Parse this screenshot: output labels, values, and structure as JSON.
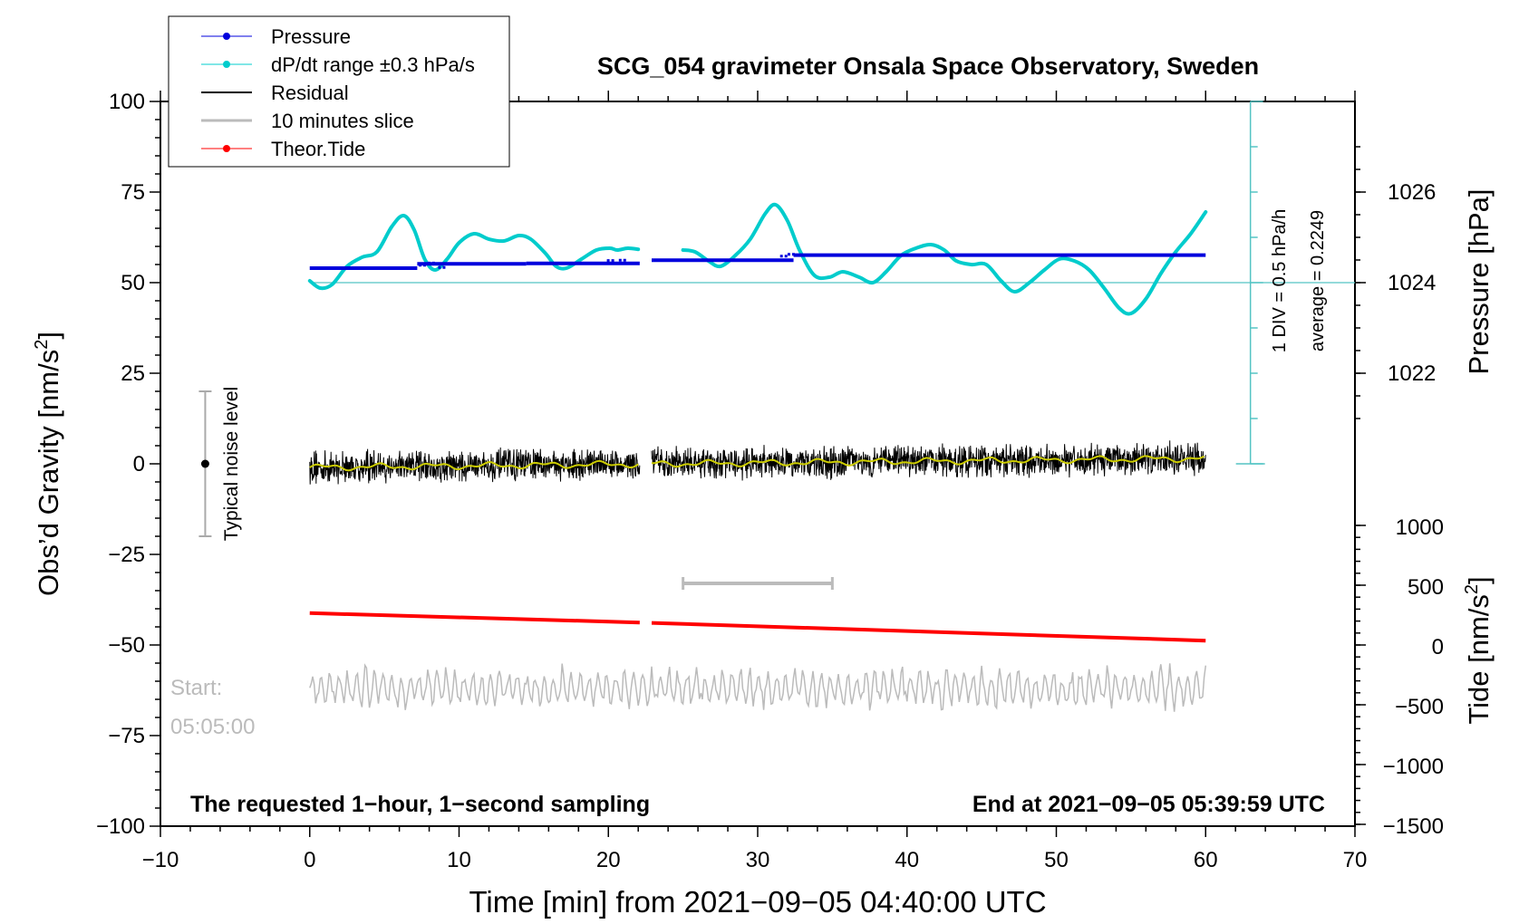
{
  "chart_data": {
    "type": "line",
    "title": "SCG_054 gravimeter Onsala Space Observatory, Sweden",
    "xlabel": "Time [min] from 2021−09−05 04:40:00 UTC",
    "ylabel_left": "Obs’d Gravity [nm/s",
    "ylabel_left_sup": "2",
    "ylabel_left_end": "]",
    "ylabel_pressure": "Pressure [hPa]",
    "ylabel_tide": "Tide [nm/s",
    "ylabel_tide_sup": "2",
    "ylabel_tide_end": "]",
    "xlim": [
      -10,
      70
    ],
    "ylim": [
      -100,
      100
    ],
    "xticks": [
      -10,
      0,
      10,
      20,
      30,
      40,
      50,
      60,
      70
    ],
    "xtick_labels": [
      "−10",
      "0",
      "10",
      "20",
      "30",
      "40",
      "50",
      "60",
      "70"
    ],
    "yticks": [
      -100,
      -75,
      -50,
      -25,
      0,
      25,
      50,
      75,
      100
    ],
    "ytick_labels": [
      "−100",
      "−75",
      "−50",
      "−25",
      "0",
      "25",
      "50",
      "75",
      "100"
    ],
    "pressure_ticks": [
      1022,
      1024,
      1026
    ],
    "pressure_tick_labels": [
      "1022",
      "1024",
      "1026"
    ],
    "tide_ticks": [
      -1500,
      -1000,
      -500,
      0,
      500,
      1000
    ],
    "tide_tick_labels": [
      "−1500",
      "−1000",
      "−500",
      "0",
      "500",
      "1000"
    ],
    "legend": [
      {
        "label": "Pressure",
        "color": "#0000dd",
        "marker": true
      },
      {
        "label": "dP/dt range ±0.3 hPa/s",
        "color": "#00cccc",
        "marker": true
      },
      {
        "label": "Residual",
        "color": "#000000",
        "marker": false
      },
      {
        "label": "10 minutes slice",
        "color": "#bbbbbb",
        "marker": false
      },
      {
        "label": "Theor.Tide",
        "color": "#ff0000",
        "marker": true
      }
    ],
    "pressure_scale_label": "1 DIV = 0.5 hPa/h",
    "average_label": "average = 0.2249",
    "noise_label": "Typical noise level",
    "noise_bar": {
      "x": -7,
      "center": 0,
      "low": -20,
      "high": 20
    },
    "slice_bar": {
      "x_start": 25,
      "x_end": 35,
      "y": -33
    },
    "gap": [
      22.1,
      22.9
    ],
    "pressure_segments": [
      {
        "x0": 0,
        "x1": 7.2,
        "y": 54
      },
      {
        "x0": 7.2,
        "x1": 14.5,
        "y": 55.2
      },
      {
        "x0": 14.5,
        "x1": 22.1,
        "y": 55.3
      },
      {
        "x0": 22.9,
        "x1": 32.4,
        "y": 56.2
      },
      {
        "x0": 32.4,
        "x1": 60,
        "y": 57.6
      }
    ],
    "dpdt_gridline_y": 50,
    "dpdt_points": [
      [
        0,
        50.5
      ],
      [
        0.7,
        48.5
      ],
      [
        1.5,
        49.5
      ],
      [
        2.5,
        54.5
      ],
      [
        3.5,
        57
      ],
      [
        4.5,
        58.5
      ],
      [
        5.5,
        65.5
      ],
      [
        6.3,
        68.5
      ],
      [
        7,
        64.5
      ],
      [
        7.7,
        56.5
      ],
      [
        8.4,
        53.5
      ],
      [
        9.2,
        56.5
      ],
      [
        10,
        61
      ],
      [
        11,
        63.5
      ],
      [
        12,
        62
      ],
      [
        13,
        61.5
      ],
      [
        14,
        63
      ],
      [
        14.8,
        62
      ],
      [
        15.8,
        58
      ],
      [
        16.5,
        54.5
      ],
      [
        17.2,
        54
      ],
      [
        18.2,
        56.5
      ],
      [
        19.2,
        59
      ],
      [
        20.1,
        59.5
      ],
      [
        20.6,
        59
      ],
      [
        21.3,
        59.5
      ],
      [
        22,
        59.2
      ],
      null,
      [
        25,
        59
      ],
      [
        25.8,
        58.5
      ],
      [
        26.7,
        56
      ],
      [
        27.5,
        54.5
      ],
      [
        28.5,
        57.5
      ],
      [
        29.5,
        62
      ],
      [
        30.5,
        69
      ],
      [
        31.2,
        71.5
      ],
      [
        32,
        67
      ],
      [
        32.8,
        59
      ],
      [
        33.8,
        52
      ],
      [
        34.8,
        51.5
      ],
      [
        35.7,
        53
      ],
      [
        36.8,
        51.5
      ],
      [
        37.7,
        50
      ],
      [
        38.6,
        53
      ],
      [
        39.6,
        57.5
      ],
      [
        40.6,
        59.5
      ],
      [
        41.6,
        60.5
      ],
      [
        42.5,
        59
      ],
      [
        43.3,
        56
      ],
      [
        44.3,
        55
      ],
      [
        45.3,
        55
      ],
      [
        46.3,
        50.5
      ],
      [
        47.2,
        47.5
      ],
      [
        48.2,
        50
      ],
      [
        49.2,
        53.5
      ],
      [
        50.2,
        56.5
      ],
      [
        51.2,
        56
      ],
      [
        52.2,
        53.5
      ],
      [
        53.2,
        48.5
      ],
      [
        54.2,
        43
      ],
      [
        55,
        41.5
      ],
      [
        56,
        45.5
      ],
      [
        57,
        52.5
      ],
      [
        58,
        58.5
      ],
      [
        59,
        63.5
      ],
      [
        60,
        69.5
      ]
    ],
    "residual": {
      "y_center": 0,
      "noise_amplitude": 3.6,
      "trend_start": -1,
      "trend_end": 1.5
    },
    "tide": [
      {
        "x0": 0,
        "x1": 22.1,
        "y0": -41.2,
        "y1": -43.8
      },
      {
        "x0": 22.9,
        "x1": 60,
        "y0": -43.9,
        "y1": -48.8
      }
    ],
    "slice_trace_y": -62,
    "start_label_1": "Start:",
    "start_label_2": "05:05:00",
    "footer_left": "The requested 1−hour, 1−second sampling",
    "footer_right": "End at 2021−09−05 05:39:59 UTC",
    "colors": {
      "pressure": "#0000dd",
      "dpdt": "#00cccc",
      "dpdt_axis": "#55c4c4",
      "residual": "#000000",
      "residual_smooth": "#cccc00",
      "slice": "#bbbbbb",
      "tide": "#ff0000",
      "noise": "#aaaaaa"
    }
  }
}
